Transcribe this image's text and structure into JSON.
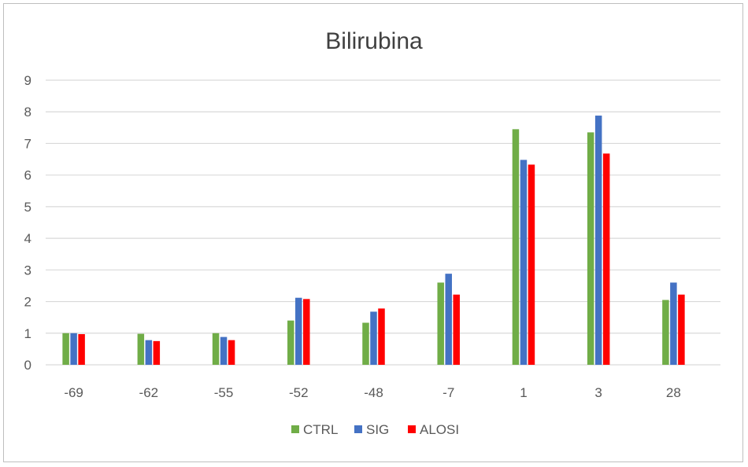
{
  "chart_data": {
    "type": "bar",
    "title": "Bilirubina",
    "xlabel": "",
    "ylabel": "",
    "categories": [
      "-69",
      "-62",
      "-55",
      "-52",
      "-48",
      "-7",
      "1",
      "3",
      "28"
    ],
    "ylim": [
      0,
      9
    ],
    "yticks": [
      "0",
      "1",
      "2",
      "3",
      "4",
      "5",
      "6",
      "7",
      "8",
      "9"
    ],
    "grid": true,
    "legend_position": "bottom",
    "series": [
      {
        "name": "CTRL",
        "color": "#70ad47",
        "values": [
          1.0,
          0.98,
          1.0,
          1.4,
          1.33,
          2.6,
          7.45,
          7.35,
          2.05
        ]
      },
      {
        "name": "SIG",
        "color": "#4472c4",
        "values": [
          1.0,
          0.78,
          0.88,
          2.12,
          1.68,
          2.88,
          6.48,
          7.88,
          2.6
        ]
      },
      {
        "name": "ALOSI",
        "color": "#ff0000",
        "values": [
          0.97,
          0.75,
          0.78,
          2.08,
          1.78,
          2.22,
          6.33,
          6.68,
          2.22
        ]
      }
    ]
  }
}
